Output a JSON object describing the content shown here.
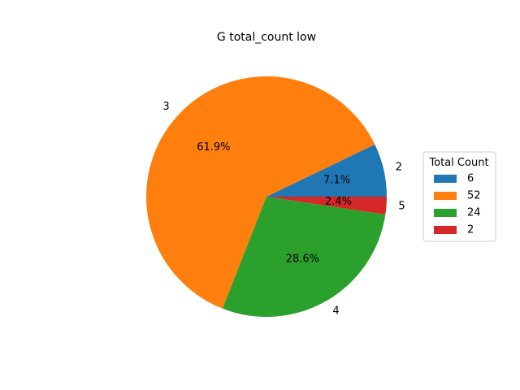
{
  "chart_data": {
    "type": "pie",
    "title": "G total_count low",
    "labels": [
      "2",
      "3",
      "4",
      "5"
    ],
    "values": [
      6,
      52,
      24,
      2
    ],
    "percent_labels": [
      "7.1%",
      "61.9%",
      "28.6%",
      "2.4%"
    ],
    "colors": [
      "#1f77b4",
      "#ff7f0e",
      "#2ca02c",
      "#d62728"
    ],
    "legend": {
      "title": "Total Count",
      "entries": [
        "6",
        "52",
        "24",
        "2"
      ],
      "placement": "center-right"
    },
    "start_angle_deg": 0,
    "direction": "counterclockwise"
  }
}
